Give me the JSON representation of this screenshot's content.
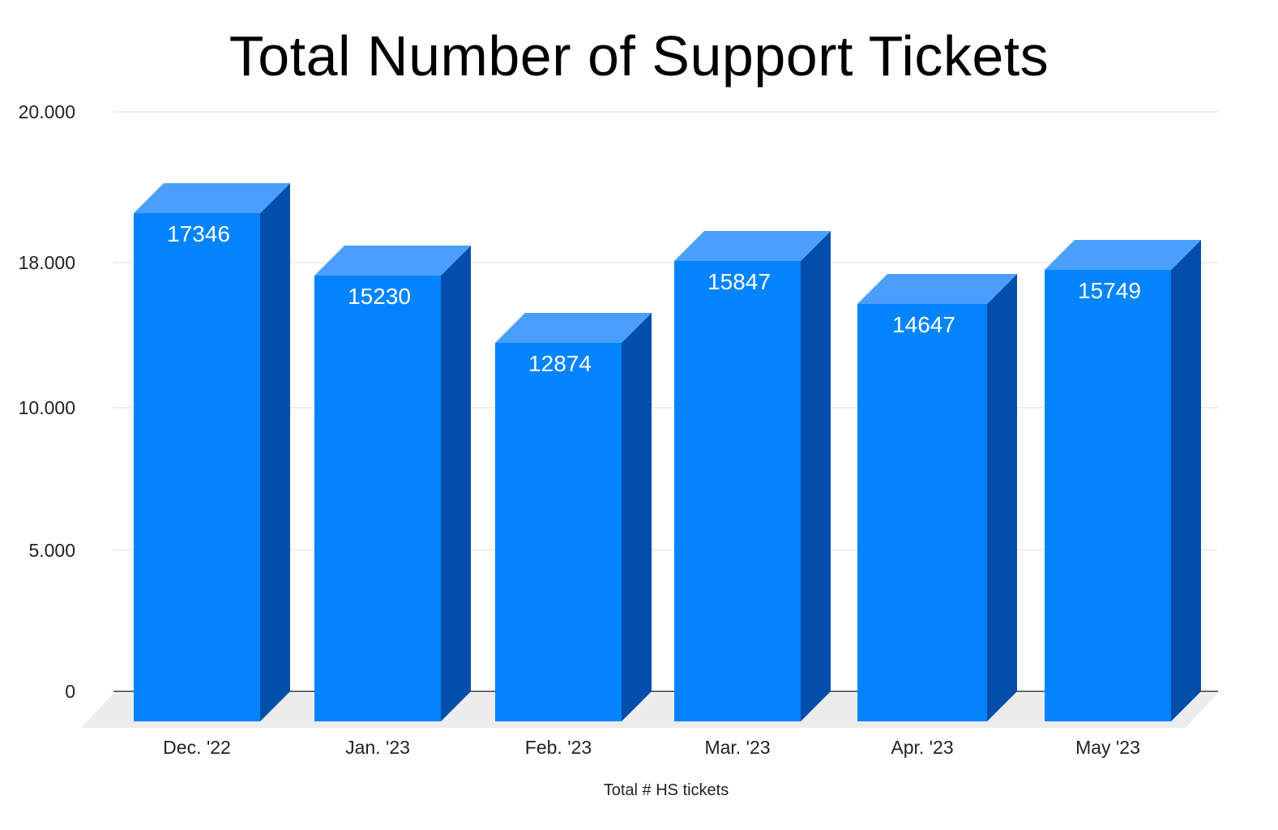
{
  "chart_data": {
    "type": "bar",
    "title": "Total Number of Support Tickets",
    "xlabel": "Total # HS tickets",
    "ylabel": "",
    "categories": [
      "Dec. '22",
      "Jan. '23",
      "Feb. '23",
      "Mar. '23",
      "Apr. '23",
      "May '23"
    ],
    "values": [
      17346,
      15230,
      12874,
      15847,
      14647,
      15749
    ],
    "data_labels": [
      "17346",
      "15230",
      "12874",
      "15847",
      "14647",
      "15749"
    ],
    "y_ticks": [
      0,
      5000,
      10000,
      18000,
      20000
    ],
    "y_tick_labels": [
      "0",
      "5.000",
      "10.000",
      "18.000",
      "20.000"
    ],
    "ylim": [
      0,
      20000
    ],
    "grid": true,
    "legend": "none",
    "three_d": true,
    "colors": {
      "bar_front": "#0384fc",
      "bar_top": "#4a9ffc",
      "bar_side": "#024eaa",
      "floor": "#ececec",
      "grid": "#dddddd",
      "baseline": "#333333"
    }
  }
}
